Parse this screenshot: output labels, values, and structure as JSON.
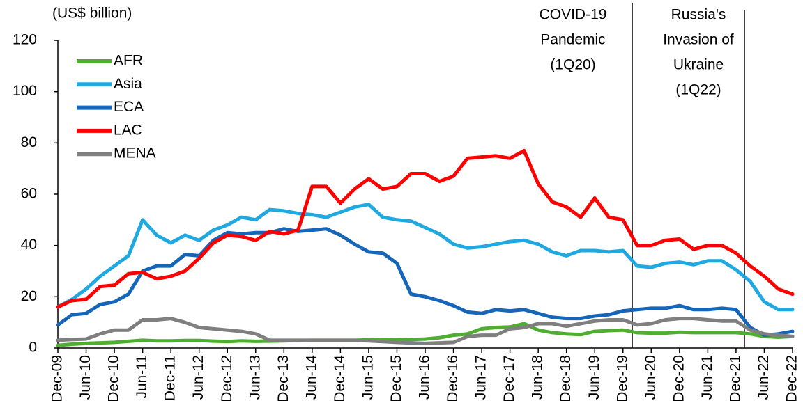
{
  "chart_data": {
    "type": "line",
    "y_label": "(US$ billion)",
    "categories": [
      "Dec-09",
      null,
      "Jun-10",
      null,
      "Dec-10",
      null,
      "Jun-11",
      null,
      "Dec-11",
      null,
      "Jun-12",
      null,
      "Dec-12",
      null,
      "Jun-13",
      null,
      "Dec-13",
      null,
      "Jun-14",
      null,
      "Dec-14",
      null,
      "Jun-15",
      null,
      "Dec-15",
      null,
      "Jun-16",
      null,
      "Dec-16",
      null,
      "Jun-17",
      null,
      "Dec-17",
      null,
      "Jun-18",
      null,
      "Dec-18",
      null,
      "Jun-19",
      null,
      "Dec-19",
      null,
      "Jun-20",
      null,
      "Dec-20",
      null,
      "Jun-21",
      null,
      "Dec-21",
      null,
      "Jun-22",
      null,
      "Dec-22"
    ],
    "series": [
      {
        "name": "AFR",
        "color": "#4fae32",
        "values": [
          1,
          1.5,
          1.8,
          2,
          2.2,
          2.6,
          3,
          2.8,
          2.8,
          2.9,
          2.9,
          2.7,
          2.5,
          2.8,
          2.6,
          2.7,
          2.8,
          2.9,
          3,
          3,
          3,
          3,
          3.2,
          3.3,
          3.2,
          3.3,
          3.5,
          4,
          5,
          5.5,
          7.5,
          8,
          8.2,
          9.5,
          7,
          6,
          5.5,
          5.2,
          6.5,
          6.8,
          7,
          6,
          5.8,
          5.8,
          6.2,
          6,
          6,
          6,
          6,
          5.5,
          4.5,
          4.2,
          4.5
        ]
      },
      {
        "name": "Asia",
        "color": "#1fa9e0",
        "values": [
          16,
          19,
          23,
          28,
          32,
          36,
          50,
          44,
          41,
          44,
          42,
          46,
          48,
          51,
          50,
          54,
          53.5,
          52.5,
          52,
          51,
          53,
          55,
          56,
          51,
          50,
          49.5,
          47,
          44.5,
          40.5,
          39,
          39.5,
          40.5,
          41.5,
          42,
          40.5,
          37.5,
          36,
          38,
          38,
          37.5,
          38,
          32,
          31.5,
          33,
          33.5,
          32.5,
          34,
          34,
          30.5,
          26,
          18,
          15,
          15
        ]
      },
      {
        "name": "ECA",
        "color": "#1565b8",
        "values": [
          9,
          13,
          13.5,
          17,
          18,
          21,
          30,
          32,
          32,
          36.5,
          36,
          42,
          45,
          44.5,
          45,
          45,
          46.5,
          45.5,
          46,
          46.5,
          44,
          40.5,
          37.5,
          37,
          33,
          21,
          20,
          18.5,
          16.5,
          14,
          13.5,
          15,
          14.5,
          15,
          13.5,
          12,
          11.5,
          11.5,
          12.5,
          13,
          14.5,
          15,
          15.5,
          15.5,
          16.5,
          15,
          15,
          15.5,
          15,
          8,
          5,
          5.5,
          6.5
        ]
      },
      {
        "name": "LAC",
        "color": "#ff0000",
        "values": [
          16,
          18.5,
          19,
          24,
          24.5,
          29,
          29.5,
          27,
          28,
          30,
          35,
          41,
          44,
          43.5,
          42,
          45.5,
          44.5,
          46,
          63,
          63,
          56.5,
          62,
          66,
          62,
          63,
          68,
          68,
          65,
          67,
          74,
          74.5,
          75,
          74,
          77,
          64,
          57,
          55,
          51,
          58.5,
          51,
          50,
          40,
          40,
          42,
          42.5,
          38.5,
          40,
          40,
          37,
          32,
          28,
          23,
          21
        ]
      },
      {
        "name": "MENA",
        "color": "#7f7f7f",
        "values": [
          3,
          3.3,
          3.5,
          5.5,
          7,
          7,
          11,
          11,
          11.5,
          10,
          8,
          7.5,
          7,
          6.5,
          5.5,
          3,
          3,
          3,
          3,
          3,
          3,
          3,
          2.8,
          2.5,
          2.2,
          2,
          1.8,
          2,
          2.2,
          4.5,
          5,
          5,
          7.5,
          8,
          9.5,
          9.5,
          8.5,
          9.5,
          10.5,
          11,
          11,
          9,
          9.5,
          11,
          11.5,
          11.5,
          11,
          10.5,
          10.5,
          7,
          5.5,
          5,
          4.5
        ]
      }
    ],
    "ylim": [
      0,
      120
    ],
    "yticks": [
      0,
      20,
      40,
      60,
      80,
      100,
      120
    ],
    "legend": "upper left",
    "annotations": [
      [
        "COVID-19",
        "Pandemic",
        "(1Q20)"
      ],
      [
        "Russia's",
        "Invasion of",
        "Ukraine",
        "(1Q22)"
      ]
    ]
  }
}
